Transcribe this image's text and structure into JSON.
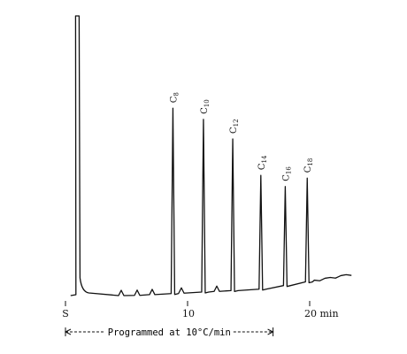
{
  "chart_data": {
    "type": "line",
    "xlabel": "",
    "ylabel": "",
    "x_ticks": [
      {
        "x": 0,
        "label": "S"
      },
      {
        "x": 10,
        "label": "10"
      },
      {
        "x": 20,
        "label": "20 min"
      }
    ],
    "xlim": [
      0,
      23
    ],
    "baseline_start_x": 1.0,
    "solvent_peak": {
      "x": 0.9,
      "height": 1.0
    },
    "peaks": [
      {
        "label_base": "C",
        "label_sub": "8",
        "x": 8.8,
        "height": 0.67
      },
      {
        "label_base": "C",
        "label_sub": "10",
        "x": 11.3,
        "height": 0.63
      },
      {
        "label_base": "C",
        "label_sub": "12",
        "x": 13.7,
        "height": 0.56
      },
      {
        "label_base": "C",
        "label_sub": "14",
        "x": 16.0,
        "height": 0.43
      },
      {
        "label_base": "C",
        "label_sub": "16",
        "x": 18.0,
        "height": 0.39
      },
      {
        "label_base": "C",
        "label_sub": "18",
        "x": 19.8,
        "height": 0.42
      }
    ],
    "program": {
      "text": "Programmed at 10°C/min",
      "x_start": 0,
      "x_end": 17
    }
  }
}
